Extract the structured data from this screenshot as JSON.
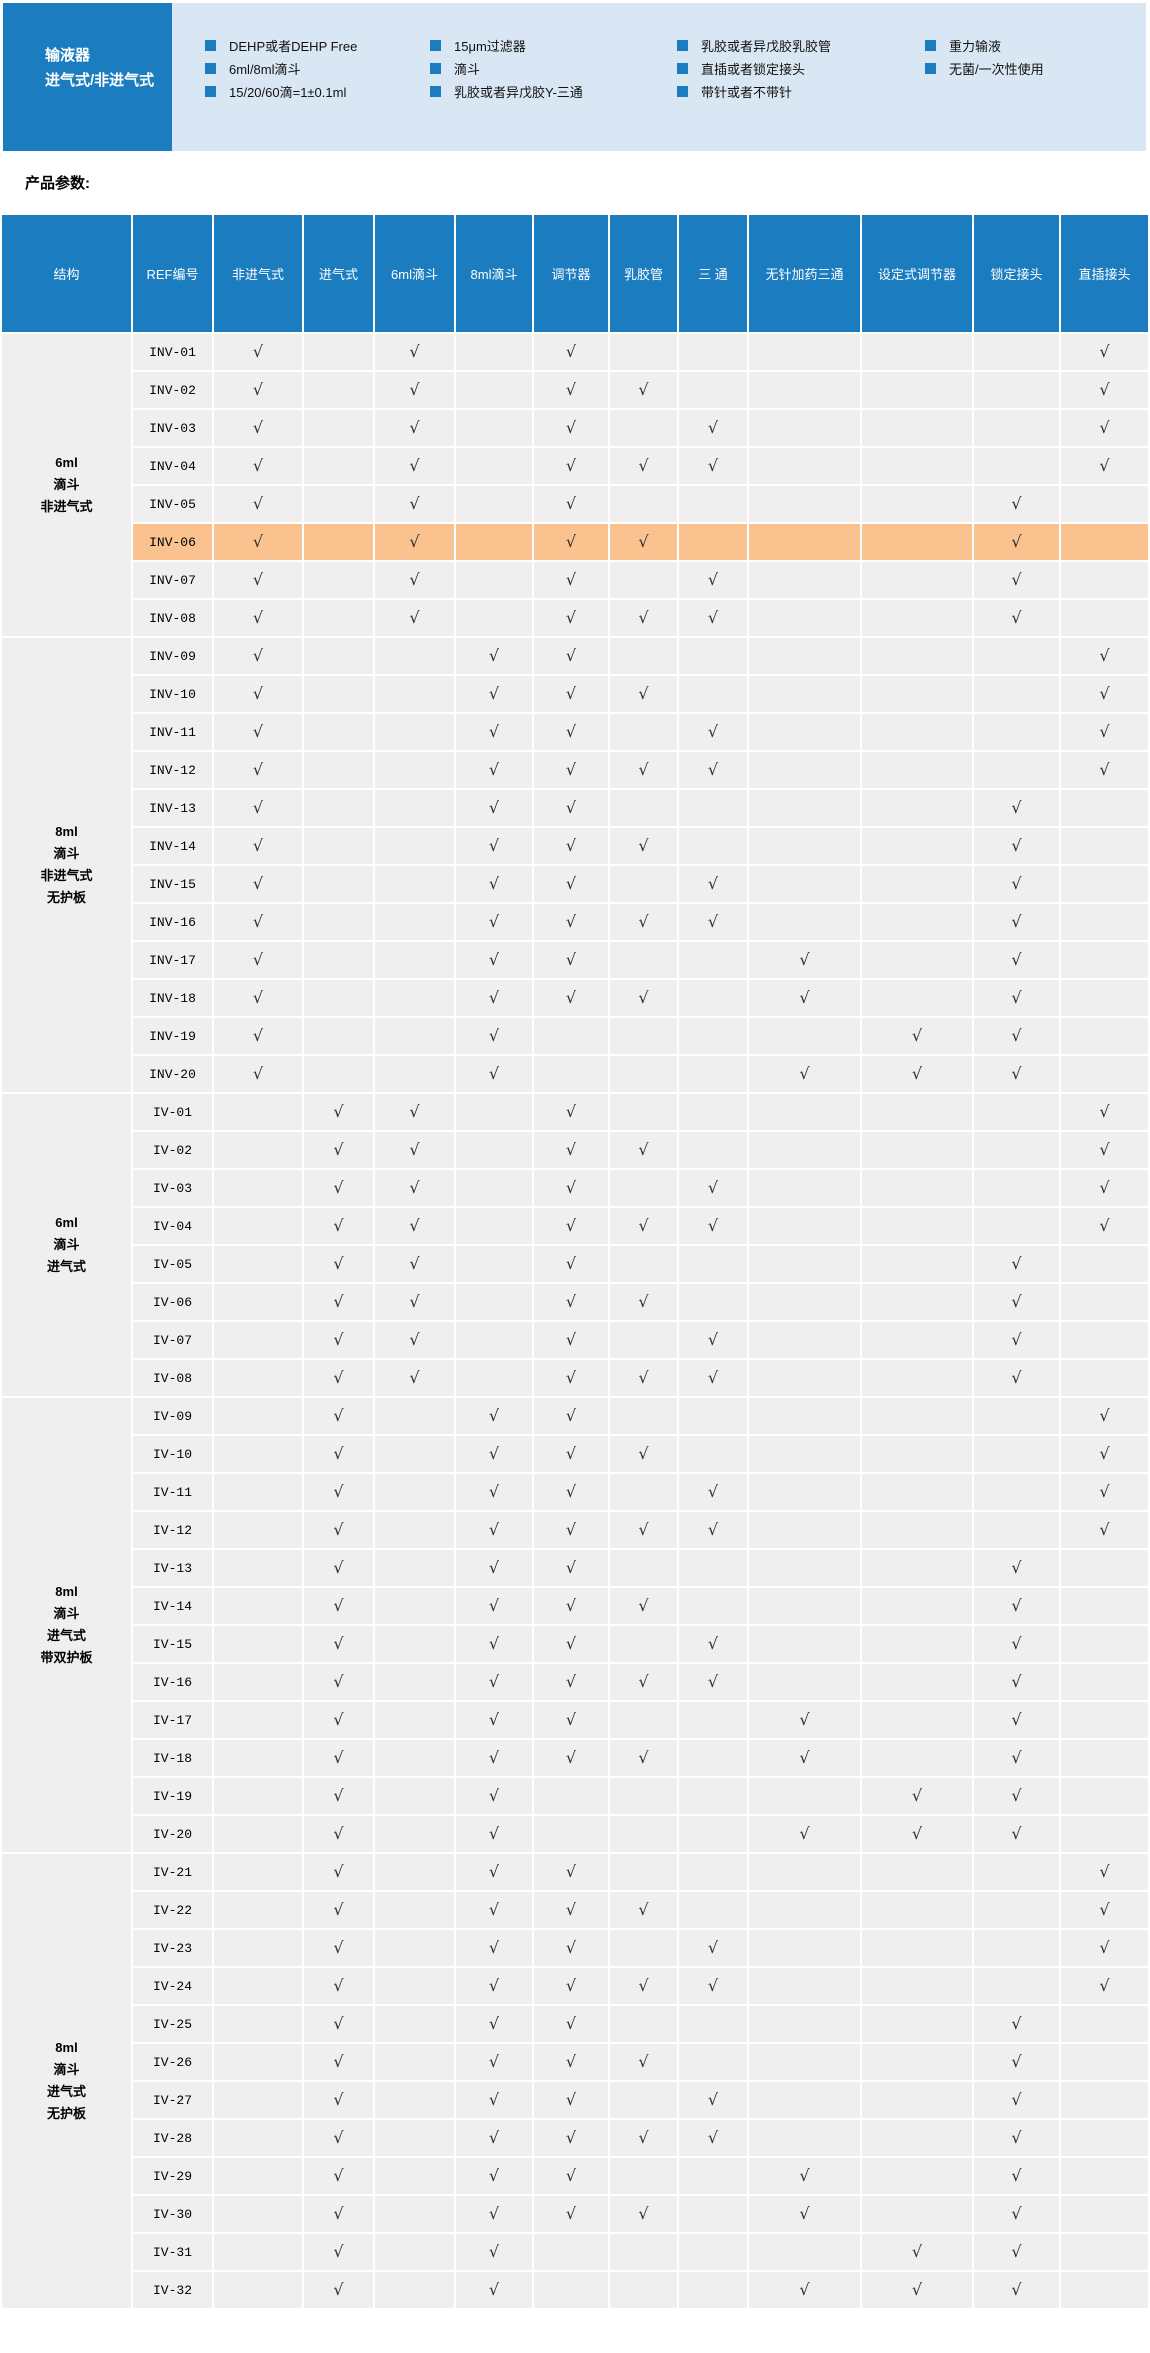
{
  "colors": {
    "accent_blue": "#1b7dc0",
    "panel_light_blue": "#d9e7f4",
    "cell_grey": "#efefef",
    "highlight_orange": "#f9c28e"
  },
  "banner": {
    "title_line1": "输液器",
    "title_line2": "进气式/非进气式",
    "feature_columns": [
      [
        "DEHP或者DEHP Free",
        "6ml/8ml滴斗",
        "15/20/60滴=1±0.1ml"
      ],
      [
        "15μm过滤器",
        "滴斗",
        "乳胶或者异戊胶Y-三通"
      ],
      [
        "乳胶或者异戊胶乳胶管",
        "直插或者锁定接头",
        "带针或者不带针"
      ],
      [
        "重力输液",
        "无菌/一次性使用"
      ]
    ]
  },
  "section_label": "产品参数:",
  "table": {
    "check_symbol": "√",
    "columns": [
      "结构",
      "REF编号",
      "非进气式",
      "进气式",
      "6ml滴斗",
      "8ml滴斗",
      "调节器",
      "乳胶管",
      "三 通",
      "无针加药三通",
      "设定式调节器",
      "锁定接头",
      "直插接头"
    ],
    "feature_order": [
      "非进气式",
      "进气式",
      "6ml滴斗",
      "8ml滴斗",
      "调节器",
      "乳胶管",
      "三 通",
      "无针加药三通",
      "设定式调节器",
      "锁定接头",
      "直插接头"
    ],
    "groups": [
      {
        "label_lines": [
          "6ml",
          "滴斗",
          "非进气式"
        ],
        "rows": [
          {
            "ref": "INV-01",
            "checks": [
              1,
              0,
              1,
              0,
              1,
              0,
              0,
              0,
              0,
              0,
              1
            ],
            "highlight": false
          },
          {
            "ref": "INV-02",
            "checks": [
              1,
              0,
              1,
              0,
              1,
              1,
              0,
              0,
              0,
              0,
              1
            ],
            "highlight": false
          },
          {
            "ref": "INV-03",
            "checks": [
              1,
              0,
              1,
              0,
              1,
              0,
              1,
              0,
              0,
              0,
              1
            ],
            "highlight": false
          },
          {
            "ref": "INV-04",
            "checks": [
              1,
              0,
              1,
              0,
              1,
              1,
              1,
              0,
              0,
              0,
              1
            ],
            "highlight": false
          },
          {
            "ref": "INV-05",
            "checks": [
              1,
              0,
              1,
              0,
              1,
              0,
              0,
              0,
              0,
              1,
              0
            ],
            "highlight": false
          },
          {
            "ref": "INV-06",
            "checks": [
              1,
              0,
              1,
              0,
              1,
              1,
              0,
              0,
              0,
              1,
              0
            ],
            "highlight": true
          },
          {
            "ref": "INV-07",
            "checks": [
              1,
              0,
              1,
              0,
              1,
              0,
              1,
              0,
              0,
              1,
              0
            ],
            "highlight": false
          },
          {
            "ref": "INV-08",
            "checks": [
              1,
              0,
              1,
              0,
              1,
              1,
              1,
              0,
              0,
              1,
              0
            ],
            "highlight": false
          }
        ]
      },
      {
        "label_lines": [
          "8ml",
          "滴斗",
          "非进气式",
          "无护板"
        ],
        "rows": [
          {
            "ref": "INV-09",
            "checks": [
              1,
              0,
              0,
              1,
              1,
              0,
              0,
              0,
              0,
              0,
              1
            ],
            "highlight": false
          },
          {
            "ref": "INV-10",
            "checks": [
              1,
              0,
              0,
              1,
              1,
              1,
              0,
              0,
              0,
              0,
              1
            ],
            "highlight": false
          },
          {
            "ref": "INV-11",
            "checks": [
              1,
              0,
              0,
              1,
              1,
              0,
              1,
              0,
              0,
              0,
              1
            ],
            "highlight": false
          },
          {
            "ref": "INV-12",
            "checks": [
              1,
              0,
              0,
              1,
              1,
              1,
              1,
              0,
              0,
              0,
              1
            ],
            "highlight": false
          },
          {
            "ref": "INV-13",
            "checks": [
              1,
              0,
              0,
              1,
              1,
              0,
              0,
              0,
              0,
              1,
              0
            ],
            "highlight": false
          },
          {
            "ref": "INV-14",
            "checks": [
              1,
              0,
              0,
              1,
              1,
              1,
              0,
              0,
              0,
              1,
              0
            ],
            "highlight": false
          },
          {
            "ref": "INV-15",
            "checks": [
              1,
              0,
              0,
              1,
              1,
              0,
              1,
              0,
              0,
              1,
              0
            ],
            "highlight": false
          },
          {
            "ref": "INV-16",
            "checks": [
              1,
              0,
              0,
              1,
              1,
              1,
              1,
              0,
              0,
              1,
              0
            ],
            "highlight": false
          },
          {
            "ref": "INV-17",
            "checks": [
              1,
              0,
              0,
              1,
              1,
              0,
              0,
              1,
              0,
              1,
              0
            ],
            "highlight": false
          },
          {
            "ref": "INV-18",
            "checks": [
              1,
              0,
              0,
              1,
              1,
              1,
              0,
              1,
              0,
              1,
              0
            ],
            "highlight": false
          },
          {
            "ref": "INV-19",
            "checks": [
              1,
              0,
              0,
              1,
              0,
              0,
              0,
              0,
              1,
              1,
              0
            ],
            "highlight": false
          },
          {
            "ref": "INV-20",
            "checks": [
              1,
              0,
              0,
              1,
              0,
              0,
              0,
              1,
              1,
              1,
              0
            ],
            "highlight": false
          }
        ]
      },
      {
        "label_lines": [
          "6ml",
          "滴斗",
          "进气式"
        ],
        "rows": [
          {
            "ref": "IV-01",
            "checks": [
              0,
              1,
              1,
              0,
              1,
              0,
              0,
              0,
              0,
              0,
              1
            ],
            "highlight": false
          },
          {
            "ref": "IV-02",
            "checks": [
              0,
              1,
              1,
              0,
              1,
              1,
              0,
              0,
              0,
              0,
              1
            ],
            "highlight": false
          },
          {
            "ref": "IV-03",
            "checks": [
              0,
              1,
              1,
              0,
              1,
              0,
              1,
              0,
              0,
              0,
              1
            ],
            "highlight": false
          },
          {
            "ref": "IV-04",
            "checks": [
              0,
              1,
              1,
              0,
              1,
              1,
              1,
              0,
              0,
              0,
              1
            ],
            "highlight": false
          },
          {
            "ref": "IV-05",
            "checks": [
              0,
              1,
              1,
              0,
              1,
              0,
              0,
              0,
              0,
              1,
              0
            ],
            "highlight": false
          },
          {
            "ref": "IV-06",
            "checks": [
              0,
              1,
              1,
              0,
              1,
              1,
              0,
              0,
              0,
              1,
              0
            ],
            "highlight": false
          },
          {
            "ref": "IV-07",
            "checks": [
              0,
              1,
              1,
              0,
              1,
              0,
              1,
              0,
              0,
              1,
              0
            ],
            "highlight": false
          },
          {
            "ref": "IV-08",
            "checks": [
              0,
              1,
              1,
              0,
              1,
              1,
              1,
              0,
              0,
              1,
              0
            ],
            "highlight": false
          }
        ]
      },
      {
        "label_lines": [
          "8ml",
          "滴斗",
          "进气式",
          "带双护板"
        ],
        "rows": [
          {
            "ref": "IV-09",
            "checks": [
              0,
              1,
              0,
              1,
              1,
              0,
              0,
              0,
              0,
              0,
              1
            ],
            "highlight": false
          },
          {
            "ref": "IV-10",
            "checks": [
              0,
              1,
              0,
              1,
              1,
              1,
              0,
              0,
              0,
              0,
              1
            ],
            "highlight": false
          },
          {
            "ref": "IV-11",
            "checks": [
              0,
              1,
              0,
              1,
              1,
              0,
              1,
              0,
              0,
              0,
              1
            ],
            "highlight": false
          },
          {
            "ref": "IV-12",
            "checks": [
              0,
              1,
              0,
              1,
              1,
              1,
              1,
              0,
              0,
              0,
              1
            ],
            "highlight": false
          },
          {
            "ref": "IV-13",
            "checks": [
              0,
              1,
              0,
              1,
              1,
              0,
              0,
              0,
              0,
              1,
              0
            ],
            "highlight": false
          },
          {
            "ref": "IV-14",
            "checks": [
              0,
              1,
              0,
              1,
              1,
              1,
              0,
              0,
              0,
              1,
              0
            ],
            "highlight": false
          },
          {
            "ref": "IV-15",
            "checks": [
              0,
              1,
              0,
              1,
              1,
              0,
              1,
              0,
              0,
              1,
              0
            ],
            "highlight": false
          },
          {
            "ref": "IV-16",
            "checks": [
              0,
              1,
              0,
              1,
              1,
              1,
              1,
              0,
              0,
              1,
              0
            ],
            "highlight": false
          },
          {
            "ref": "IV-17",
            "checks": [
              0,
              1,
              0,
              1,
              1,
              0,
              0,
              1,
              0,
              1,
              0
            ],
            "highlight": false
          },
          {
            "ref": "IV-18",
            "checks": [
              0,
              1,
              0,
              1,
              1,
              1,
              0,
              1,
              0,
              1,
              0
            ],
            "highlight": false
          },
          {
            "ref": "IV-19",
            "checks": [
              0,
              1,
              0,
              1,
              0,
              0,
              0,
              0,
              1,
              1,
              0
            ],
            "highlight": false
          },
          {
            "ref": "IV-20",
            "checks": [
              0,
              1,
              0,
              1,
              0,
              0,
              0,
              1,
              1,
              1,
              0
            ],
            "highlight": false
          }
        ]
      },
      {
        "label_lines": [
          "8ml",
          "滴斗",
          "进气式",
          "无护板"
        ],
        "rows": [
          {
            "ref": "IV-21",
            "checks": [
              0,
              1,
              0,
              1,
              1,
              0,
              0,
              0,
              0,
              0,
              1
            ],
            "highlight": false
          },
          {
            "ref": "IV-22",
            "checks": [
              0,
              1,
              0,
              1,
              1,
              1,
              0,
              0,
              0,
              0,
              1
            ],
            "highlight": false
          },
          {
            "ref": "IV-23",
            "checks": [
              0,
              1,
              0,
              1,
              1,
              0,
              1,
              0,
              0,
              0,
              1
            ],
            "highlight": false
          },
          {
            "ref": "IV-24",
            "checks": [
              0,
              1,
              0,
              1,
              1,
              1,
              1,
              0,
              0,
              0,
              1
            ],
            "highlight": false
          },
          {
            "ref": "IV-25",
            "checks": [
              0,
              1,
              0,
              1,
              1,
              0,
              0,
              0,
              0,
              1,
              0
            ],
            "highlight": false
          },
          {
            "ref": "IV-26",
            "checks": [
              0,
              1,
              0,
              1,
              1,
              1,
              0,
              0,
              0,
              1,
              0
            ],
            "highlight": false
          },
          {
            "ref": "IV-27",
            "checks": [
              0,
              1,
              0,
              1,
              1,
              0,
              1,
              0,
              0,
              1,
              0
            ],
            "highlight": false
          },
          {
            "ref": "IV-28",
            "checks": [
              0,
              1,
              0,
              1,
              1,
              1,
              1,
              0,
              0,
              1,
              0
            ],
            "highlight": false
          },
          {
            "ref": "IV-29",
            "checks": [
              0,
              1,
              0,
              1,
              1,
              0,
              0,
              1,
              0,
              1,
              0
            ],
            "highlight": false
          },
          {
            "ref": "IV-30",
            "checks": [
              0,
              1,
              0,
              1,
              1,
              1,
              0,
              1,
              0,
              1,
              0
            ],
            "highlight": false
          },
          {
            "ref": "IV-31",
            "checks": [
              0,
              1,
              0,
              1,
              0,
              0,
              0,
              0,
              1,
              1,
              0
            ],
            "highlight": false
          },
          {
            "ref": "IV-32",
            "checks": [
              0,
              1,
              0,
              1,
              0,
              0,
              0,
              1,
              1,
              1,
              0
            ],
            "highlight": false
          }
        ]
      }
    ]
  }
}
